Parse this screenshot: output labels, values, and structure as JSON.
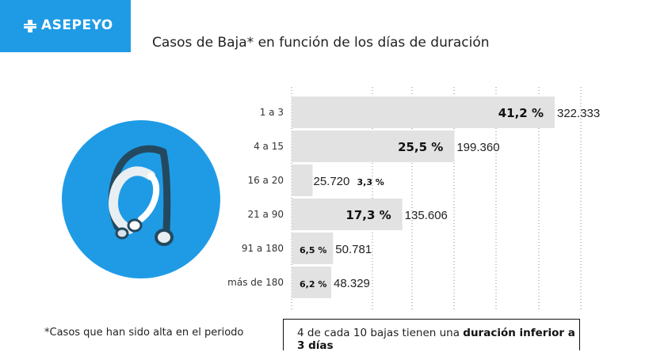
{
  "brand": {
    "name": "ASEPEYO",
    "color": "#1f9be6"
  },
  "icon": "stethoscope-icon",
  "footnote": "*Casos que han sido alta en el periodo",
  "callout": {
    "text_before": "4 de cada 10 bajas tienen una ",
    "text_bold": "duración inferior a 3 días"
  },
  "chart_data": {
    "type": "bar",
    "orientation": "horizontal",
    "title": "Casos de Baja* en función de los días de duración",
    "categories": [
      "1 a 3",
      "4 a 15",
      "16 a 20",
      "21 a 90",
      "91 a 180",
      "más de 180"
    ],
    "values": [
      322333,
      199360,
      25720,
      135606,
      50781,
      48329
    ],
    "value_labels": [
      "322.333",
      "199.360",
      "25.720",
      "135.606",
      "50.781",
      "48.329"
    ],
    "percent_labels": [
      "41,2 %",
      "25,5 %",
      "3,3 %",
      "17,3 %",
      "6,5 %",
      "6,2 %"
    ],
    "bar_color": "#e2e2e2",
    "grid": true
  }
}
